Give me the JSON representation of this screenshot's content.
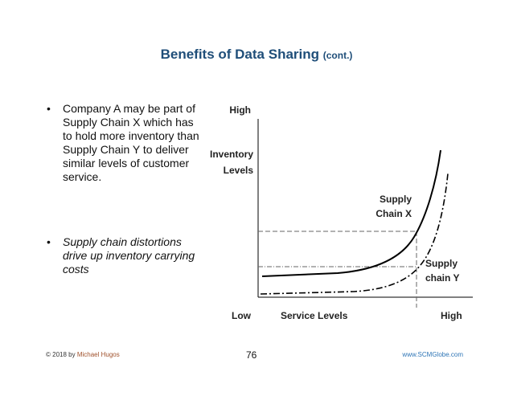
{
  "header": {
    "title": "Benefits of Data Sharing",
    "title_suffix": "(cont.)"
  },
  "bullets": [
    "Company A may be part of Supply Chain X which has to hold more inventory than Supply Chain Y to deliver similar levels of customer service.",
    "Supply chain distortions drive up inventory carrying costs"
  ],
  "diagram": {
    "y_high": "High",
    "y_label": [
      "Inventory",
      "Levels"
    ],
    "y_low": "Low",
    "x_label": "Service Levels",
    "x_high": "High",
    "curve_x_label": [
      "Supply",
      "Chain X"
    ],
    "curve_y_label": [
      "Supply",
      "chain Y"
    ]
  },
  "footer": {
    "copyright": "© 2018 by",
    "author": "Michael Hugos",
    "page": "76",
    "website": "www.SCMGlobe.com"
  }
}
